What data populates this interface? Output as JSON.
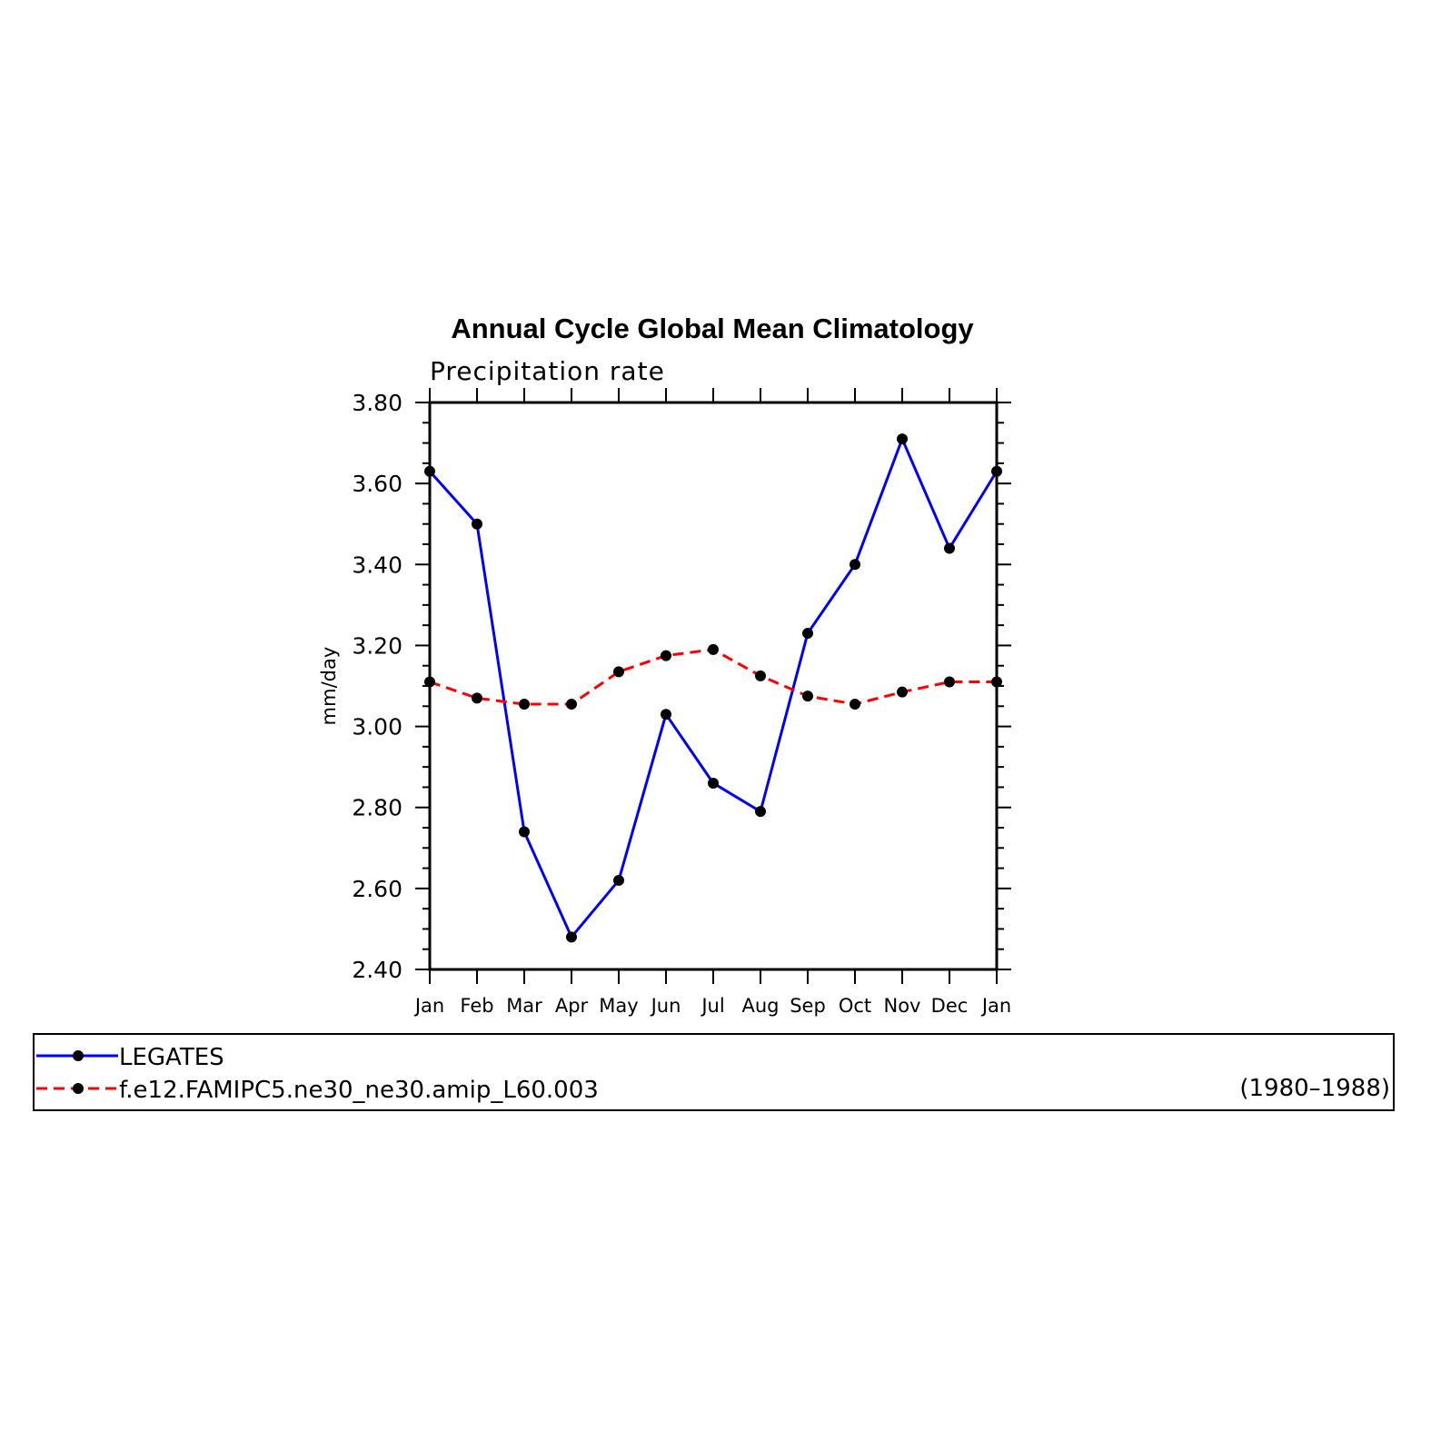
{
  "chart_data": {
    "type": "line",
    "title": "Annual Cycle Global Mean Climatology",
    "subtitle": "Precipitation rate",
    "xlabel": "",
    "ylabel": "mm/day",
    "categories": [
      "Jan",
      "Feb",
      "Mar",
      "Apr",
      "May",
      "Jun",
      "Jul",
      "Aug",
      "Sep",
      "Oct",
      "Nov",
      "Dec",
      "Jan"
    ],
    "ylim": [
      2.4,
      3.8
    ],
    "yticks": [
      "2.40",
      "2.60",
      "2.80",
      "3.00",
      "3.20",
      "3.40",
      "3.60",
      "3.80"
    ],
    "grid": false,
    "legend_position": "bottom",
    "series": [
      {
        "name": "LEGATES",
        "color": "#0000ff",
        "line_style": "solid",
        "marker": "filled-circle",
        "values": [
          3.63,
          3.5,
          2.74,
          2.48,
          2.62,
          3.03,
          2.86,
          2.79,
          3.23,
          3.4,
          3.71,
          3.44,
          3.63
        ]
      },
      {
        "name": "f.e12.FAMIPC5.ne30_ne30.amip_L60.003",
        "color": "#ff0000",
        "line_style": "dashed",
        "marker": "filled-circle",
        "values": [
          3.11,
          3.07,
          3.055,
          3.055,
          3.135,
          3.175,
          3.19,
          3.125,
          3.075,
          3.055,
          3.085,
          3.11,
          3.11
        ]
      }
    ],
    "annotations": {
      "period": "(1980–1988)"
    }
  }
}
